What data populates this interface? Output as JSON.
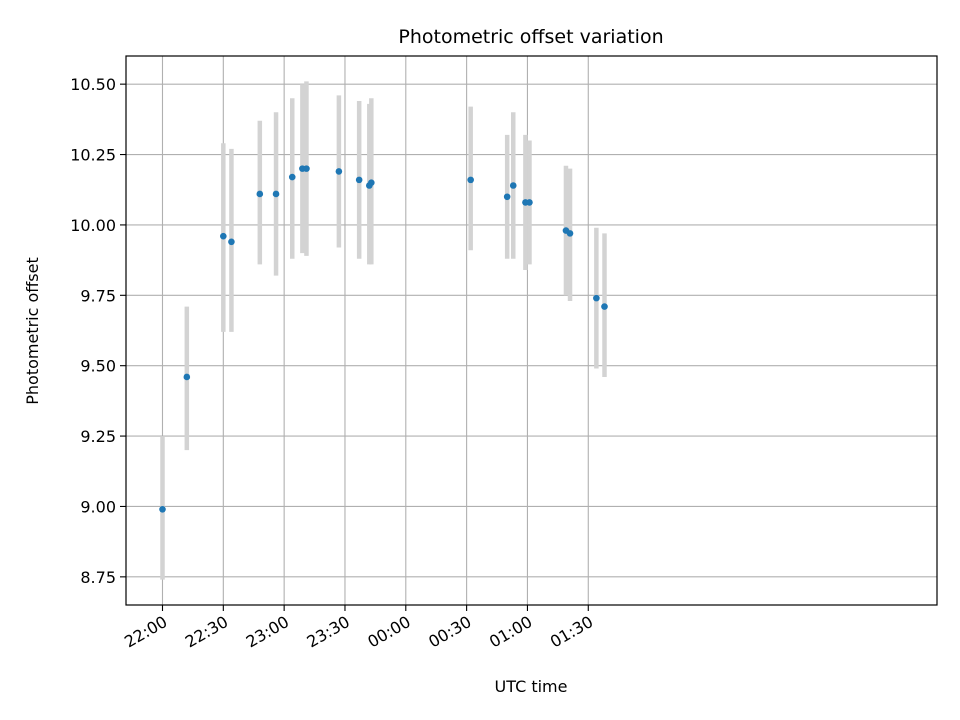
{
  "chart_data": {
    "type": "scatter",
    "title": "Photometric offset variation",
    "xlabel": "UTC time",
    "ylabel": "Photometric offset",
    "grid": true,
    "xlim_minutes": [
      -18,
      382
    ],
    "ylim": [
      8.65,
      10.6
    ],
    "x_ticks": [
      {
        "label": "22:00",
        "minute": 0
      },
      {
        "label": "22:30",
        "minute": 30
      },
      {
        "label": "23:00",
        "minute": 60
      },
      {
        "label": "23:30",
        "minute": 90
      },
      {
        "label": "00:00",
        "minute": 120
      },
      {
        "label": "00:30",
        "minute": 150
      },
      {
        "label": "01:00",
        "minute": 180
      },
      {
        "label": "01:30",
        "minute": 210
      }
    ],
    "y_ticks": [
      {
        "label": "8.75",
        "value": 8.75
      },
      {
        "label": "9.00",
        "value": 9.0
      },
      {
        "label": "9.25",
        "value": 9.25
      },
      {
        "label": "9.50",
        "value": 9.5
      },
      {
        "label": "9.75",
        "value": 9.75
      },
      {
        "label": "10.00",
        "value": 10.0
      },
      {
        "label": "10.25",
        "value": 10.25
      },
      {
        "label": "10.50",
        "value": 10.5
      }
    ],
    "series": [
      {
        "point_color": "#1f77b4",
        "errorbar_color": "#d3d3d3",
        "points": [
          {
            "time": "22:00",
            "y": 8.99,
            "low": 8.74,
            "high": 9.25
          },
          {
            "time": "22:12",
            "y": 9.46,
            "low": 9.2,
            "high": 9.71
          },
          {
            "time": "22:30",
            "y": 9.96,
            "low": 9.62,
            "high": 10.29
          },
          {
            "time": "22:34",
            "y": 9.94,
            "low": 9.62,
            "high": 10.27
          },
          {
            "time": "22:48",
            "y": 10.11,
            "low": 9.86,
            "high": 10.37
          },
          {
            "time": "22:56",
            "y": 10.11,
            "low": 9.82,
            "high": 10.4
          },
          {
            "time": "23:04",
            "y": 10.17,
            "low": 9.88,
            "high": 10.45
          },
          {
            "time": "23:09",
            "y": 10.2,
            "low": 9.9,
            "high": 10.5
          },
          {
            "time": "23:11",
            "y": 10.2,
            "low": 9.89,
            "high": 10.51
          },
          {
            "time": "23:27",
            "y": 10.19,
            "low": 9.92,
            "high": 10.46
          },
          {
            "time": "23:37",
            "y": 10.16,
            "low": 9.88,
            "high": 10.44
          },
          {
            "time": "23:42",
            "y": 10.14,
            "low": 9.86,
            "high": 10.43
          },
          {
            "time": "23:43",
            "y": 10.15,
            "low": 9.86,
            "high": 10.45
          },
          {
            "time": "00:32",
            "y": 10.16,
            "low": 9.91,
            "high": 10.42
          },
          {
            "time": "00:50",
            "y": 10.1,
            "low": 9.88,
            "high": 10.32
          },
          {
            "time": "00:53",
            "y": 10.14,
            "low": 9.88,
            "high": 10.4
          },
          {
            "time": "00:59",
            "y": 10.08,
            "low": 9.84,
            "high": 10.32
          },
          {
            "time": "01:01",
            "y": 10.08,
            "low": 9.86,
            "high": 10.3
          },
          {
            "time": "01:19",
            "y": 9.98,
            "low": 9.75,
            "high": 10.21
          },
          {
            "time": "01:21",
            "y": 9.97,
            "low": 9.73,
            "high": 10.2
          },
          {
            "time": "01:34",
            "y": 9.74,
            "low": 9.49,
            "high": 9.99
          },
          {
            "time": "01:38",
            "y": 9.71,
            "low": 9.46,
            "high": 9.97
          }
        ]
      }
    ]
  }
}
